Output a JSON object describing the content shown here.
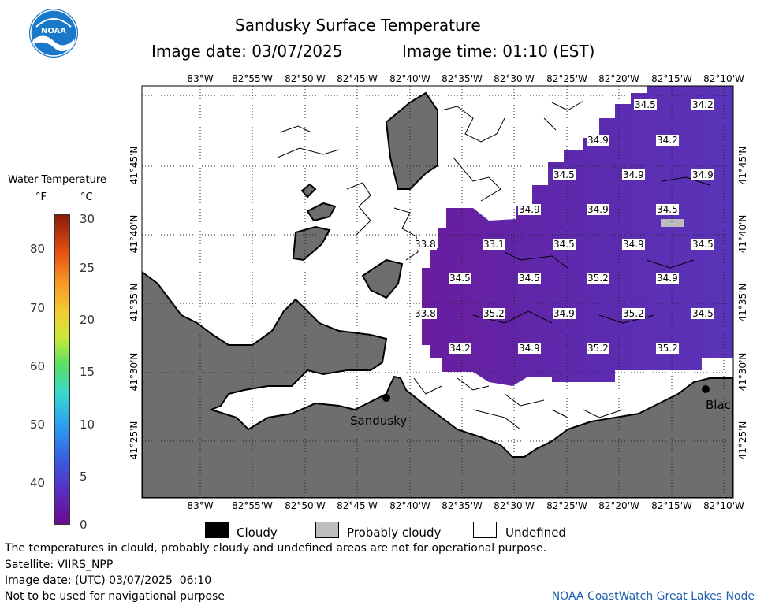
{
  "header": {
    "title": "Sandusky Surface Temperature",
    "image_date": "Image date: 03/07/2025",
    "image_time": "Image time: 01:10 (EST)"
  },
  "colorbar": {
    "title": "Water Temperature",
    "unit_f": "°F",
    "unit_c": "°C",
    "f_ticks": [
      "80",
      "70",
      "60",
      "50",
      "40"
    ],
    "c_ticks": [
      "30",
      "25",
      "20",
      "15",
      "10",
      "5",
      "0"
    ]
  },
  "axes": {
    "lon_ticks": [
      "83°W",
      "82°55'W",
      "82°50'W",
      "82°45'W",
      "82°40'W",
      "82°35'W",
      "82°30'W",
      "82°25'W",
      "82°20'W",
      "82°15'W",
      "82°10'W"
    ],
    "lat_ticks": [
      "41°45'N",
      "41°40'N",
      "41°35'N",
      "41°30'N",
      "41°25'N"
    ]
  },
  "map": {
    "colors": {
      "land": "#6e6e6e",
      "water_cold": "#5b2bb0",
      "water_warm": "#6a1c9e",
      "undefined": "#ffffff",
      "probably_cloudy": "#bdbdbd",
      "cloudy": "#000000"
    },
    "temperature_labels": [
      "34.5",
      "34.2",
      "34.9",
      "34.2",
      "34.5",
      "34.9",
      "34.9",
      "34.9",
      "34.9",
      "34.5",
      "33.8",
      "33.1",
      "34.5",
      "34.9",
      "34.5",
      "34.5",
      "34.5",
      "35.2",
      "34.9",
      "33.8",
      "35.2",
      "34.9",
      "35.2",
      "34.5",
      "34.2",
      "34.9",
      "35.2",
      "35.2"
    ],
    "cities": [
      "Sandusky",
      "Blac"
    ]
  },
  "legend": {
    "cloudy": "Cloudy",
    "probably_cloudy": "Probably cloudy",
    "undefined": "Undefined"
  },
  "footer": {
    "disclaimer": "The temperatures in clould, probably cloudy and undefined areas are not for operational purpose.",
    "satellite": "Satellite: VIIRS_NPP",
    "utc_date": "Image date: (UTC) 03/07/2025  06:10",
    "nav_warning": "Not to be used for navigational purpose",
    "credit": "NOAA CoastWatch Great Lakes Node"
  }
}
